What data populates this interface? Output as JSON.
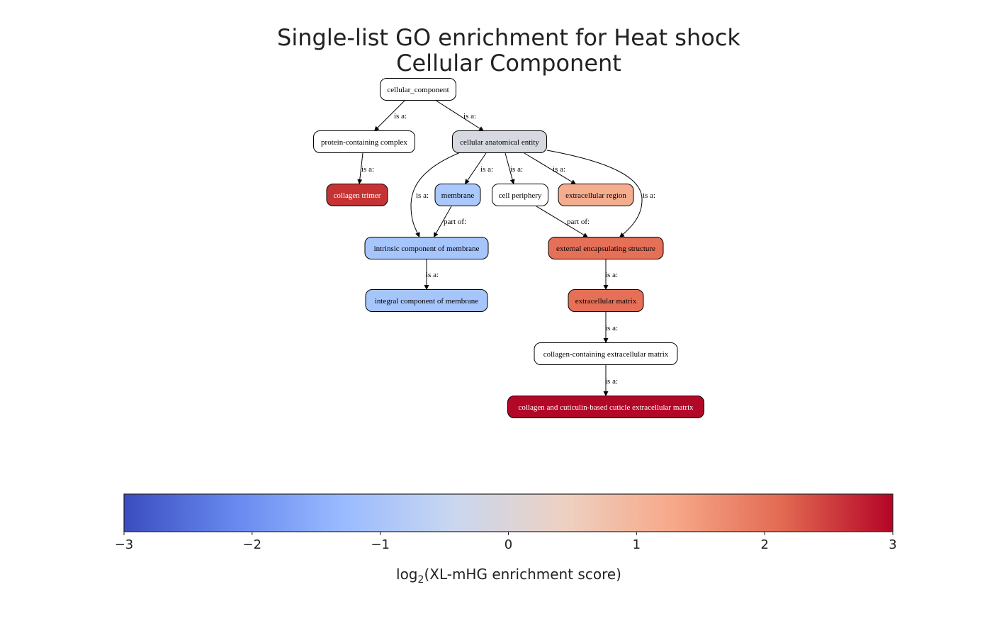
{
  "title": {
    "line1": "Single-list GO enrichment for Heat shock",
    "line2": "Cellular Component"
  },
  "nodes": [
    {
      "id": "cc",
      "label": "cellular_component",
      "fill": "#ffffff",
      "text": "#000000"
    },
    {
      "id": "pcc",
      "label": "protein-containing complex",
      "fill": "#ffffff",
      "text": "#000000"
    },
    {
      "id": "cae",
      "label": "cellular anatomical entity",
      "fill": "#d6d9df",
      "text": "#000000"
    },
    {
      "id": "ct",
      "label": "collagen trimer",
      "fill": "#c53334",
      "text": "#ffffff"
    },
    {
      "id": "mem",
      "label": "membrane",
      "fill": "#aac8fb",
      "text": "#000000"
    },
    {
      "id": "cp",
      "label": "cell periphery",
      "fill": "#ffffff",
      "text": "#000000"
    },
    {
      "id": "er",
      "label": "extracellular region",
      "fill": "#f5ad8f",
      "text": "#000000"
    },
    {
      "id": "icm",
      "label": "intrinsic component of membrane",
      "fill": "#a6c5fb",
      "text": "#000000"
    },
    {
      "id": "ees",
      "label": "external encapsulating structure",
      "fill": "#e66f57",
      "text": "#000000"
    },
    {
      "id": "igm",
      "label": "integral component of membrane",
      "fill": "#a6c5fb",
      "text": "#000000"
    },
    {
      "id": "em",
      "label": "extracellular matrix",
      "fill": "#e66f57",
      "text": "#000000"
    },
    {
      "id": "ccem",
      "label": "collagen-containing extracellular matrix",
      "fill": "#ffffff",
      "text": "#000000"
    },
    {
      "id": "ccbcem",
      "label": "collagen and cuticulin-based cuticle extracellular matrix",
      "fill": "#b20727",
      "text": "#ffffff"
    }
  ],
  "edges": [
    {
      "from": "cc",
      "to": "pcc",
      "label": "is a:"
    },
    {
      "from": "cc",
      "to": "cae",
      "label": "is a:"
    },
    {
      "from": "pcc",
      "to": "ct",
      "label": "is a:"
    },
    {
      "from": "cae",
      "to": "icm",
      "label": "is a:"
    },
    {
      "from": "cae",
      "to": "mem",
      "label": "is a:"
    },
    {
      "from": "cae",
      "to": "cp",
      "label": "is a:"
    },
    {
      "from": "cae",
      "to": "er",
      "label": "is a:"
    },
    {
      "from": "cae",
      "to": "ees",
      "label": "is a:"
    },
    {
      "from": "mem",
      "to": "icm",
      "label": "part of:"
    },
    {
      "from": "cp",
      "to": "ees",
      "label": "part of:"
    },
    {
      "from": "icm",
      "to": "igm",
      "label": "is a:"
    },
    {
      "from": "ees",
      "to": "em",
      "label": "is a:"
    },
    {
      "from": "em",
      "to": "ccem",
      "label": "is a:"
    },
    {
      "from": "ccem",
      "to": "ccbcem",
      "label": "is a:"
    }
  ],
  "colorbar": {
    "min": -3,
    "max": 3,
    "ticks": [
      "−3",
      "−2",
      "−1",
      "0",
      "1",
      "2",
      "3"
    ],
    "label_prefix": "log",
    "label_subscript": "2",
    "label_suffix": "(XL-mHG enrichment score)",
    "colormap": "coolwarm",
    "stops": [
      "#3b4cc0",
      "#6788ee",
      "#9abbff",
      "#c9d7f0",
      "#edd1c2",
      "#f7a889",
      "#e26952",
      "#b40426"
    ]
  }
}
